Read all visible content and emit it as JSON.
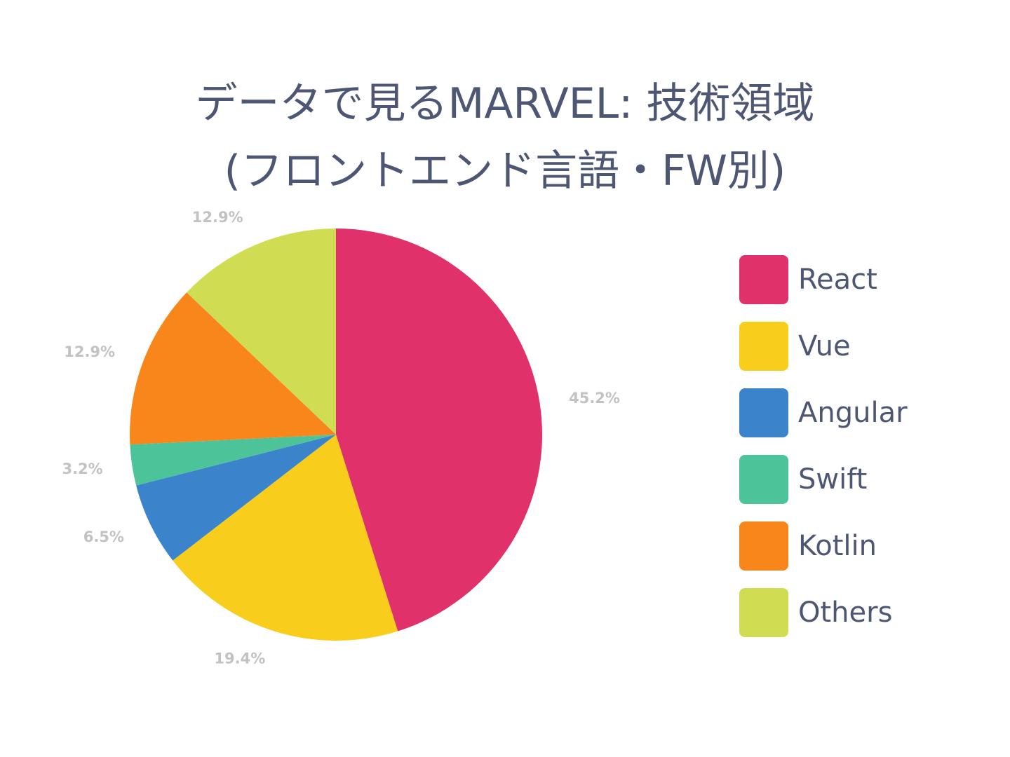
{
  "chart_data": {
    "type": "pie",
    "title_lines": [
      "データで見るMARVEL: 技術領域",
      "(フロントエンド言語・FW別)"
    ],
    "categories": [
      "React",
      "Vue",
      "Angular",
      "Swift",
      "Kotlin",
      "Others"
    ],
    "values": [
      45.2,
      19.4,
      6.5,
      3.2,
      12.9,
      12.9
    ],
    "value_labels": [
      "45.2%",
      "19.4%",
      "6.5%",
      "3.2%",
      "12.9%",
      "12.9%"
    ],
    "colors": [
      "#e0316a",
      "#f9cd1b",
      "#3b84cb",
      "#4dc39a",
      "#f8861b",
      "#d0dd53"
    ],
    "legend_position": "right"
  }
}
